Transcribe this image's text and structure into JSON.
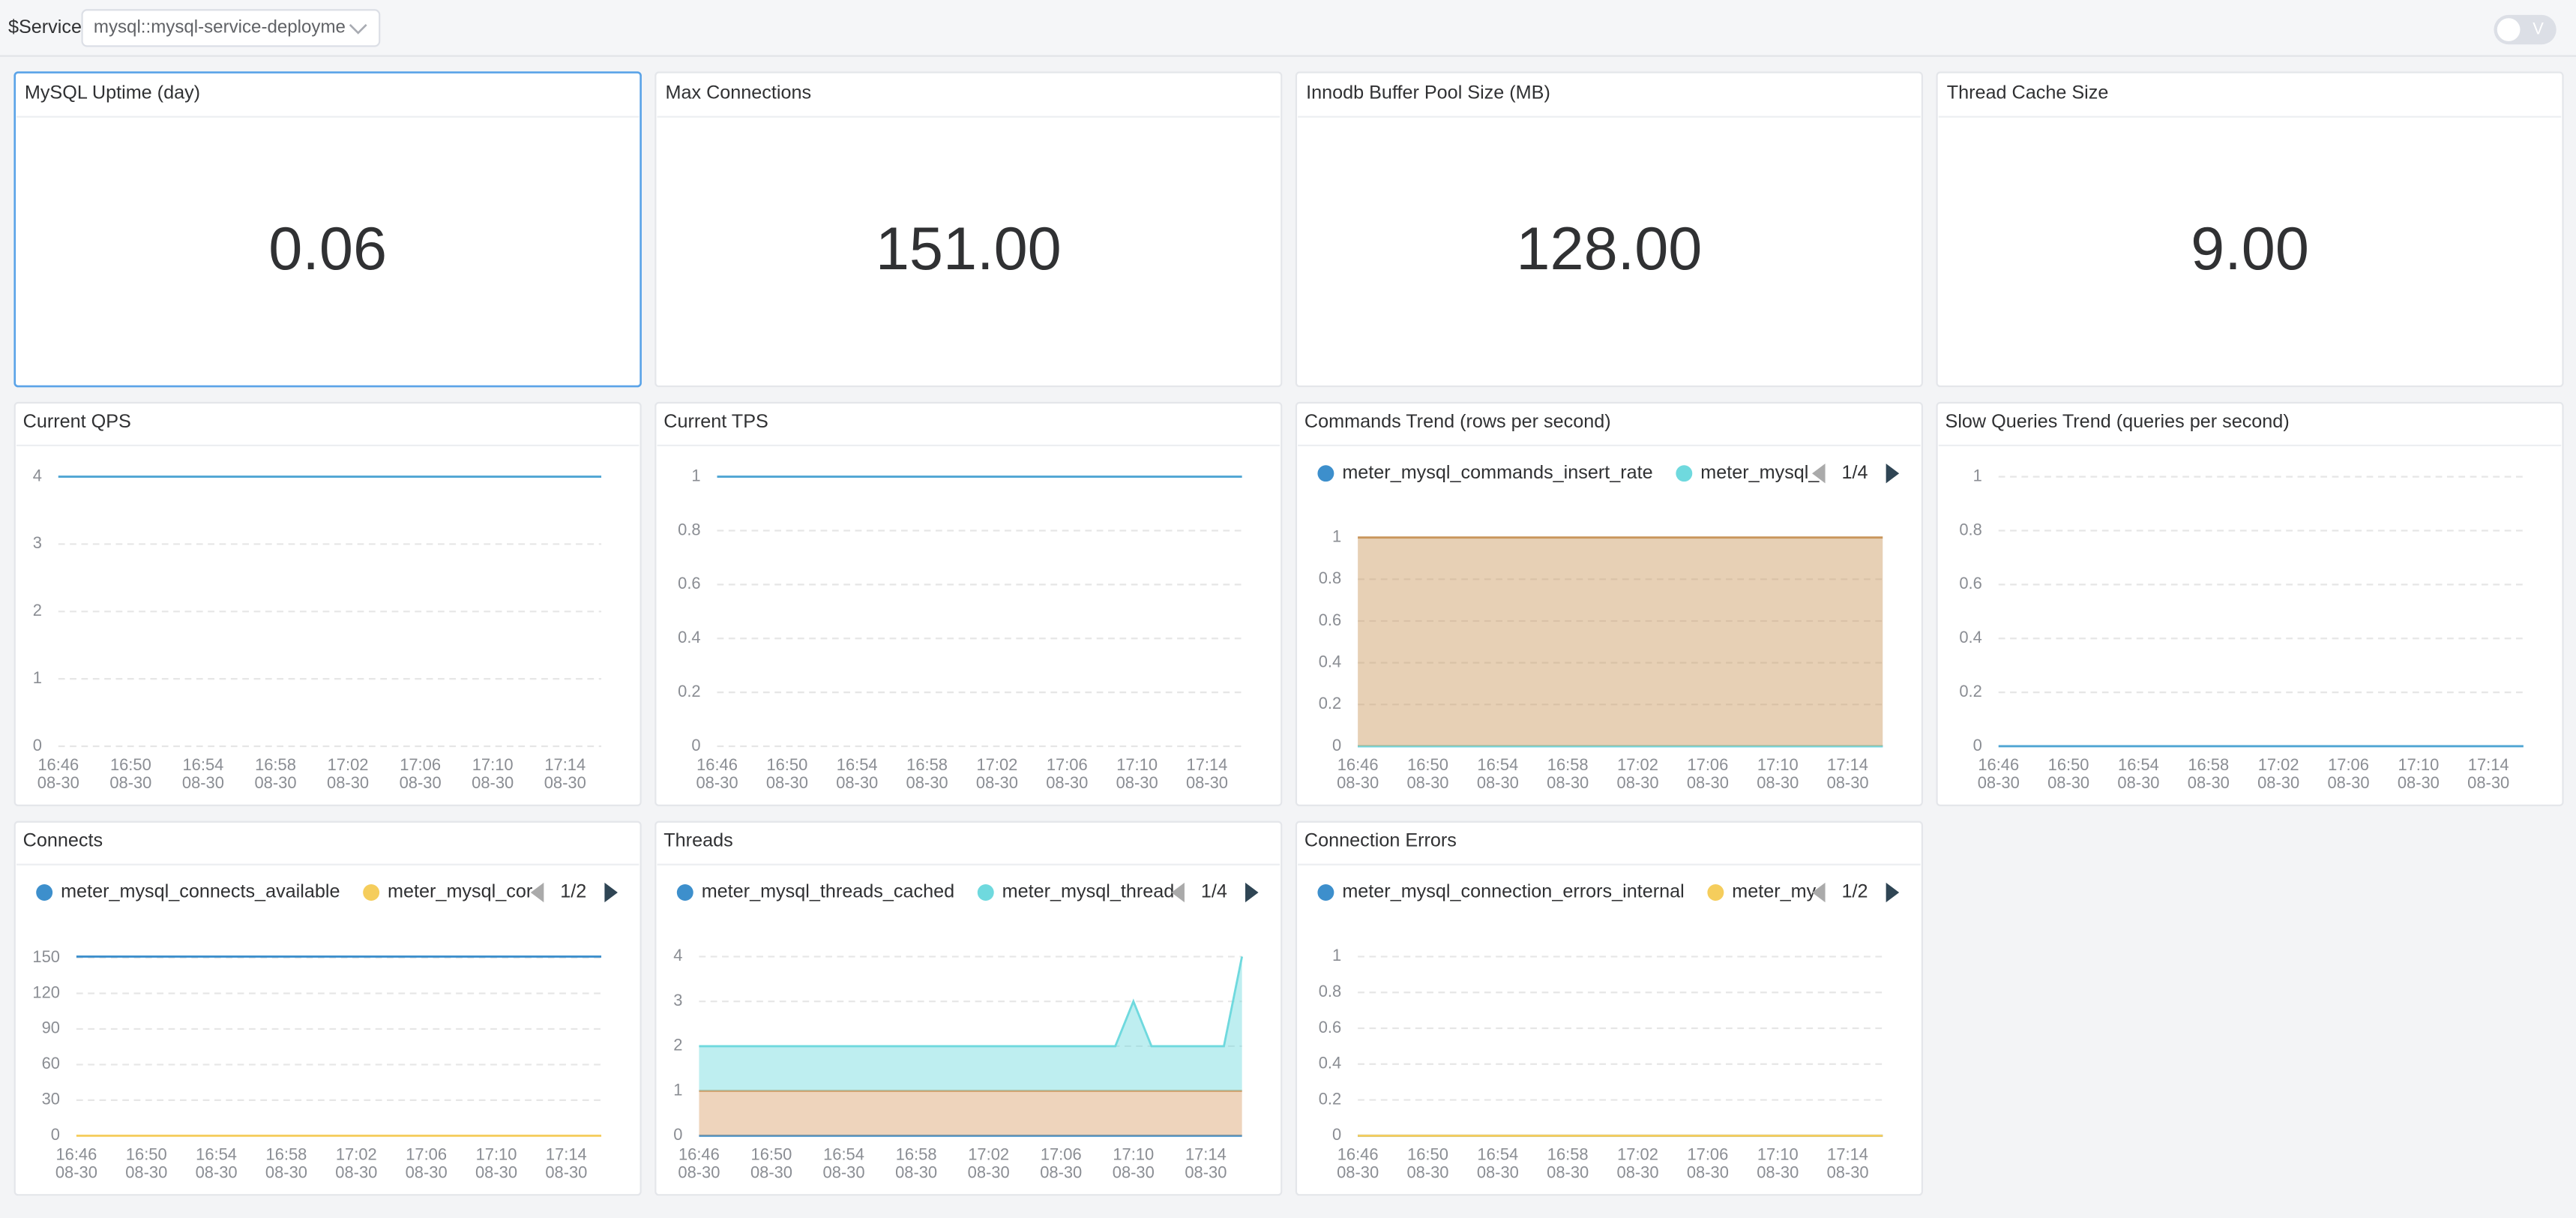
{
  "toolbar": {
    "label": "$Service",
    "selected": "mysql::mysql-service-deployme",
    "toggle": "V"
  },
  "stat_panels": [
    {
      "title": "MySQL Uptime (day)",
      "value": "0.06"
    },
    {
      "title": "Max Connections",
      "value": "151.00"
    },
    {
      "title": "Innodb Buffer Pool Size (MB)",
      "value": "128.00"
    },
    {
      "title": "Thread Cache Size",
      "value": "9.00"
    }
  ],
  "chart_data": [
    {
      "type": "line",
      "title": "Current QPS",
      "categories": [
        "16:46",
        null,
        null,
        null,
        "16:50",
        null,
        null,
        null,
        "16:54",
        null,
        null,
        null,
        "16:58",
        null,
        null,
        null,
        "17:02",
        null,
        null,
        null,
        "17:06",
        null,
        null,
        null,
        "17:10",
        null,
        null,
        null,
        "17:14",
        null,
        null
      ],
      "category_dates": [
        "08-30",
        null,
        null,
        null,
        "08-30",
        null,
        null,
        null,
        "08-30",
        null,
        null,
        null,
        "08-30",
        null,
        null,
        null,
        "08-30",
        null,
        null,
        null,
        "08-30",
        null,
        null,
        null,
        "08-30",
        null,
        null,
        null,
        "08-30",
        null,
        null
      ],
      "series": [
        {
          "color": "#4ea5d3",
          "values": [
            4,
            4,
            4,
            4,
            4,
            4,
            4,
            4,
            4,
            4,
            4,
            4,
            4,
            4,
            4,
            4,
            4,
            4,
            4,
            4,
            4,
            4,
            4,
            4,
            4,
            4,
            4,
            4,
            4,
            4,
            4
          ]
        }
      ],
      "ylim": [
        0,
        4
      ],
      "yticks": [
        0,
        1,
        2,
        3,
        4
      ],
      "grid": true
    },
    {
      "type": "line",
      "title": "Current TPS",
      "categories": [
        "16:46",
        null,
        null,
        null,
        "16:50",
        null,
        null,
        null,
        "16:54",
        null,
        null,
        null,
        "16:58",
        null,
        null,
        null,
        "17:02",
        null,
        null,
        null,
        "17:06",
        null,
        null,
        null,
        "17:10",
        null,
        null,
        null,
        "17:14",
        null,
        null
      ],
      "category_dates": [
        "08-30",
        null,
        null,
        null,
        "08-30",
        null,
        null,
        null,
        "08-30",
        null,
        null,
        null,
        "08-30",
        null,
        null,
        null,
        "08-30",
        null,
        null,
        null,
        "08-30",
        null,
        null,
        null,
        "08-30",
        null,
        null,
        null,
        "08-30",
        null,
        null
      ],
      "series": [
        {
          "color": "#4ea5d3",
          "values": [
            1,
            1,
            1,
            1,
            1,
            1,
            1,
            1,
            1,
            1,
            1,
            1,
            1,
            1,
            1,
            1,
            1,
            1,
            1,
            1,
            1,
            1,
            1,
            1,
            1,
            1,
            1,
            1,
            1,
            1,
            1
          ]
        }
      ],
      "ylim": [
        0,
        1
      ],
      "yticks": [
        0,
        0.2,
        0.4,
        0.6,
        0.8,
        1
      ],
      "grid": true
    },
    {
      "type": "area",
      "title": "Commands Trend (rows per second)",
      "categories": [
        "16:46",
        null,
        null,
        null,
        "16:50",
        null,
        null,
        null,
        "16:54",
        null,
        null,
        null,
        "16:58",
        null,
        null,
        null,
        "17:02",
        null,
        null,
        null,
        "17:06",
        null,
        null,
        null,
        "17:10",
        null,
        null,
        null,
        "17:14",
        null,
        null
      ],
      "category_dates": [
        "08-30",
        null,
        null,
        null,
        "08-30",
        null,
        null,
        null,
        "08-30",
        null,
        null,
        null,
        "08-30",
        null,
        null,
        null,
        "08-30",
        null,
        null,
        null,
        "08-30",
        null,
        null,
        null,
        "08-30",
        null,
        null,
        null,
        "08-30",
        null,
        null
      ],
      "series": [
        {
          "name": "meter_mysql_commands_insert_rate",
          "color": "#3d8fcc",
          "values": [
            0,
            0,
            0,
            0,
            0,
            0,
            0,
            0,
            0,
            0,
            0,
            0,
            0,
            0,
            0,
            0,
            0,
            0,
            0,
            0,
            0,
            0,
            0,
            0,
            0,
            0,
            0,
            0,
            0,
            0,
            0
          ]
        },
        {
          "name": "meter_mysql_",
          "color": "#6fd9de",
          "values": [
            0,
            0,
            0,
            0,
            0,
            0,
            0,
            0,
            0,
            0,
            0,
            0,
            0,
            0,
            0,
            0,
            0,
            0,
            0,
            0,
            0,
            0,
            0,
            0,
            0,
            0,
            0,
            0,
            0,
            0,
            0
          ]
        },
        {
          "color": "#c9965c",
          "values": [
            1,
            1,
            1,
            1,
            1,
            1,
            1,
            1,
            1,
            1,
            1,
            1,
            1,
            1,
            1,
            1,
            1,
            1,
            1,
            1,
            1,
            1,
            1,
            1,
            1,
            1,
            1,
            1,
            1,
            1,
            1
          ]
        }
      ],
      "stack_order": [
        0,
        1,
        2
      ],
      "legend_page": "1/4",
      "ylim": [
        0,
        1
      ],
      "yticks": [
        0,
        0.2,
        0.4,
        0.6,
        0.8,
        1
      ],
      "grid": true
    },
    {
      "type": "line",
      "title": "Slow Queries Trend (queries per second)",
      "categories": [
        "16:46",
        null,
        null,
        null,
        "16:50",
        null,
        null,
        null,
        "16:54",
        null,
        null,
        null,
        "16:58",
        null,
        null,
        null,
        "17:02",
        null,
        null,
        null,
        "17:06",
        null,
        null,
        null,
        "17:10",
        null,
        null,
        null,
        "17:14",
        null,
        null
      ],
      "category_dates": [
        "08-30",
        null,
        null,
        null,
        "08-30",
        null,
        null,
        null,
        "08-30",
        null,
        null,
        null,
        "08-30",
        null,
        null,
        null,
        "08-30",
        null,
        null,
        null,
        "08-30",
        null,
        null,
        null,
        "08-30",
        null,
        null,
        null,
        "08-30",
        null,
        null
      ],
      "series": [
        {
          "color": "#4ea5d3",
          "values": [
            0,
            0,
            0,
            0,
            0,
            0,
            0,
            0,
            0,
            0,
            0,
            0,
            0,
            0,
            0,
            0,
            0,
            0,
            0,
            0,
            0,
            0,
            0,
            0,
            0,
            0,
            0,
            0,
            0,
            0,
            0
          ]
        }
      ],
      "ylim": [
        0,
        1
      ],
      "yticks": [
        0,
        0.2,
        0.4,
        0.6,
        0.8,
        1
      ],
      "grid": true
    },
    {
      "type": "line",
      "title": "Connects",
      "categories": [
        "16:46",
        null,
        null,
        null,
        "16:50",
        null,
        null,
        null,
        "16:54",
        null,
        null,
        null,
        "16:58",
        null,
        null,
        null,
        "17:02",
        null,
        null,
        null,
        "17:06",
        null,
        null,
        null,
        "17:10",
        null,
        null,
        null,
        "17:14",
        null,
        null
      ],
      "category_dates": [
        "08-30",
        null,
        null,
        null,
        "08-30",
        null,
        null,
        null,
        "08-30",
        null,
        null,
        null,
        "08-30",
        null,
        null,
        null,
        "08-30",
        null,
        null,
        null,
        "08-30",
        null,
        null,
        null,
        "08-30",
        null,
        null,
        null,
        "08-30",
        null,
        null
      ],
      "series": [
        {
          "name": "meter_mysql_connects_available",
          "color": "#3d8fcc",
          "values": [
            151,
            151,
            151,
            151,
            151,
            151,
            151,
            151,
            151,
            151,
            151,
            151,
            151,
            151,
            151,
            151,
            151,
            151,
            151,
            151,
            151,
            151,
            151,
            151,
            151,
            151,
            151,
            151,
            151,
            151,
            151
          ]
        },
        {
          "name": "meter_mysql_cor",
          "color": "#f5cd5c",
          "values": [
            0,
            0,
            0,
            0,
            0,
            0,
            0,
            0,
            0,
            0,
            0,
            0,
            0,
            0,
            0,
            0,
            0,
            0,
            0,
            0,
            0,
            0,
            0,
            0,
            0,
            0,
            0,
            0,
            0,
            0,
            0
          ]
        }
      ],
      "legend_page": "1/2",
      "ylim": [
        0,
        151
      ],
      "yticks": [
        0,
        30,
        60,
        90,
        120,
        150
      ],
      "grid": true
    },
    {
      "type": "area",
      "title": "Threads",
      "categories": [
        "16:46",
        null,
        null,
        null,
        "16:50",
        null,
        null,
        null,
        "16:54",
        null,
        null,
        null,
        "16:58",
        null,
        null,
        null,
        "17:02",
        null,
        null,
        null,
        "17:06",
        null,
        null,
        null,
        "17:10",
        null,
        null,
        null,
        "17:14",
        null,
        null
      ],
      "category_dates": [
        "08-30",
        null,
        null,
        null,
        "08-30",
        null,
        null,
        null,
        "08-30",
        null,
        null,
        null,
        "08-30",
        null,
        null,
        null,
        "08-30",
        null,
        null,
        null,
        "08-30",
        null,
        null,
        null,
        "08-30",
        null,
        null,
        null,
        "08-30",
        null,
        null
      ],
      "series": [
        {
          "name": "meter_mysql_threads_cached",
          "color": "#3d8fcc",
          "values": [
            0,
            0,
            0,
            0,
            0,
            0,
            0,
            0,
            0,
            0,
            0,
            0,
            0,
            0,
            0,
            0,
            0,
            0,
            0,
            0,
            0,
            0,
            0,
            0,
            0,
            0,
            0,
            0,
            0,
            0,
            0
          ]
        },
        {
          "name": "meter_mysql_thread",
          "color": "#6fd9de",
          "values": [
            1,
            1,
            1,
            1,
            1,
            1,
            1,
            1,
            1,
            1,
            1,
            1,
            1,
            1,
            1,
            1,
            1,
            1,
            1,
            1,
            1,
            1,
            1,
            1,
            2,
            1,
            1,
            1,
            1,
            1,
            3
          ]
        },
        {
          "color": "#d9a06a",
          "values": [
            1,
            1,
            1,
            1,
            1,
            1,
            1,
            1,
            1,
            1,
            1,
            1,
            1,
            1,
            1,
            1,
            1,
            1,
            1,
            1,
            1,
            1,
            1,
            1,
            1,
            1,
            1,
            1,
            1,
            1,
            1
          ]
        }
      ],
      "stack_order": [
        0,
        2,
        1
      ],
      "legend_page": "1/4",
      "ylim": [
        0,
        4
      ],
      "yticks": [
        0,
        1,
        2,
        3,
        4
      ],
      "grid": true
    },
    {
      "type": "line",
      "title": "Connection Errors",
      "categories": [
        "16:46",
        null,
        null,
        null,
        "16:50",
        null,
        null,
        null,
        "16:54",
        null,
        null,
        null,
        "16:58",
        null,
        null,
        null,
        "17:02",
        null,
        null,
        null,
        "17:06",
        null,
        null,
        null,
        "17:10",
        null,
        null,
        null,
        "17:14",
        null,
        null
      ],
      "category_dates": [
        "08-30",
        null,
        null,
        null,
        "08-30",
        null,
        null,
        null,
        "08-30",
        null,
        null,
        null,
        "08-30",
        null,
        null,
        null,
        "08-30",
        null,
        null,
        null,
        "08-30",
        null,
        null,
        null,
        "08-30",
        null,
        null,
        null,
        "08-30",
        null,
        null
      ],
      "series": [
        {
          "name": "meter_mysql_connection_errors_internal",
          "color": "#3d8fcc",
          "values": [
            0,
            0,
            0,
            0,
            0,
            0,
            0,
            0,
            0,
            0,
            0,
            0,
            0,
            0,
            0,
            0,
            0,
            0,
            0,
            0,
            0,
            0,
            0,
            0,
            0,
            0,
            0,
            0,
            0,
            0,
            0
          ]
        },
        {
          "name": "meter_my",
          "color": "#f5cd5c",
          "values": [
            0,
            0,
            0,
            0,
            0,
            0,
            0,
            0,
            0,
            0,
            0,
            0,
            0,
            0,
            0,
            0,
            0,
            0,
            0,
            0,
            0,
            0,
            0,
            0,
            0,
            0,
            0,
            0,
            0,
            0,
            0
          ]
        }
      ],
      "legend_page": "1/2",
      "ylim": [
        0,
        1
      ],
      "yticks": [
        0,
        0.2,
        0.4,
        0.6,
        0.8,
        1
      ],
      "grid": true
    }
  ]
}
